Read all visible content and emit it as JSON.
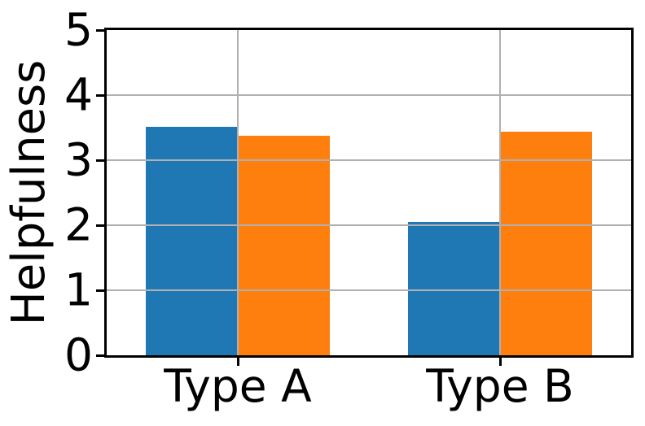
{
  "figure": {
    "background": "#ffffff"
  },
  "chart_data": {
    "type": "bar",
    "title": "",
    "xlabel": "",
    "ylabel": "Helpfulness",
    "categories": [
      "Type A",
      "Type B"
    ],
    "series": [
      {
        "color": "#1f77b4",
        "values": [
          3.51,
          2.05
        ]
      },
      {
        "color": "#ff7f0e",
        "values": [
          3.37,
          3.44
        ]
      }
    ],
    "ylim": [
      0,
      5
    ],
    "yticks": [
      0,
      1,
      2,
      3,
      4,
      5
    ],
    "bar_width": 0.35,
    "grid": true,
    "grid_above_bars": true,
    "legend": "none",
    "colors": {
      "gridline": "#b0b0b0",
      "spine": "#000000",
      "text": "#000000",
      "background": "#ffffff"
    }
  }
}
